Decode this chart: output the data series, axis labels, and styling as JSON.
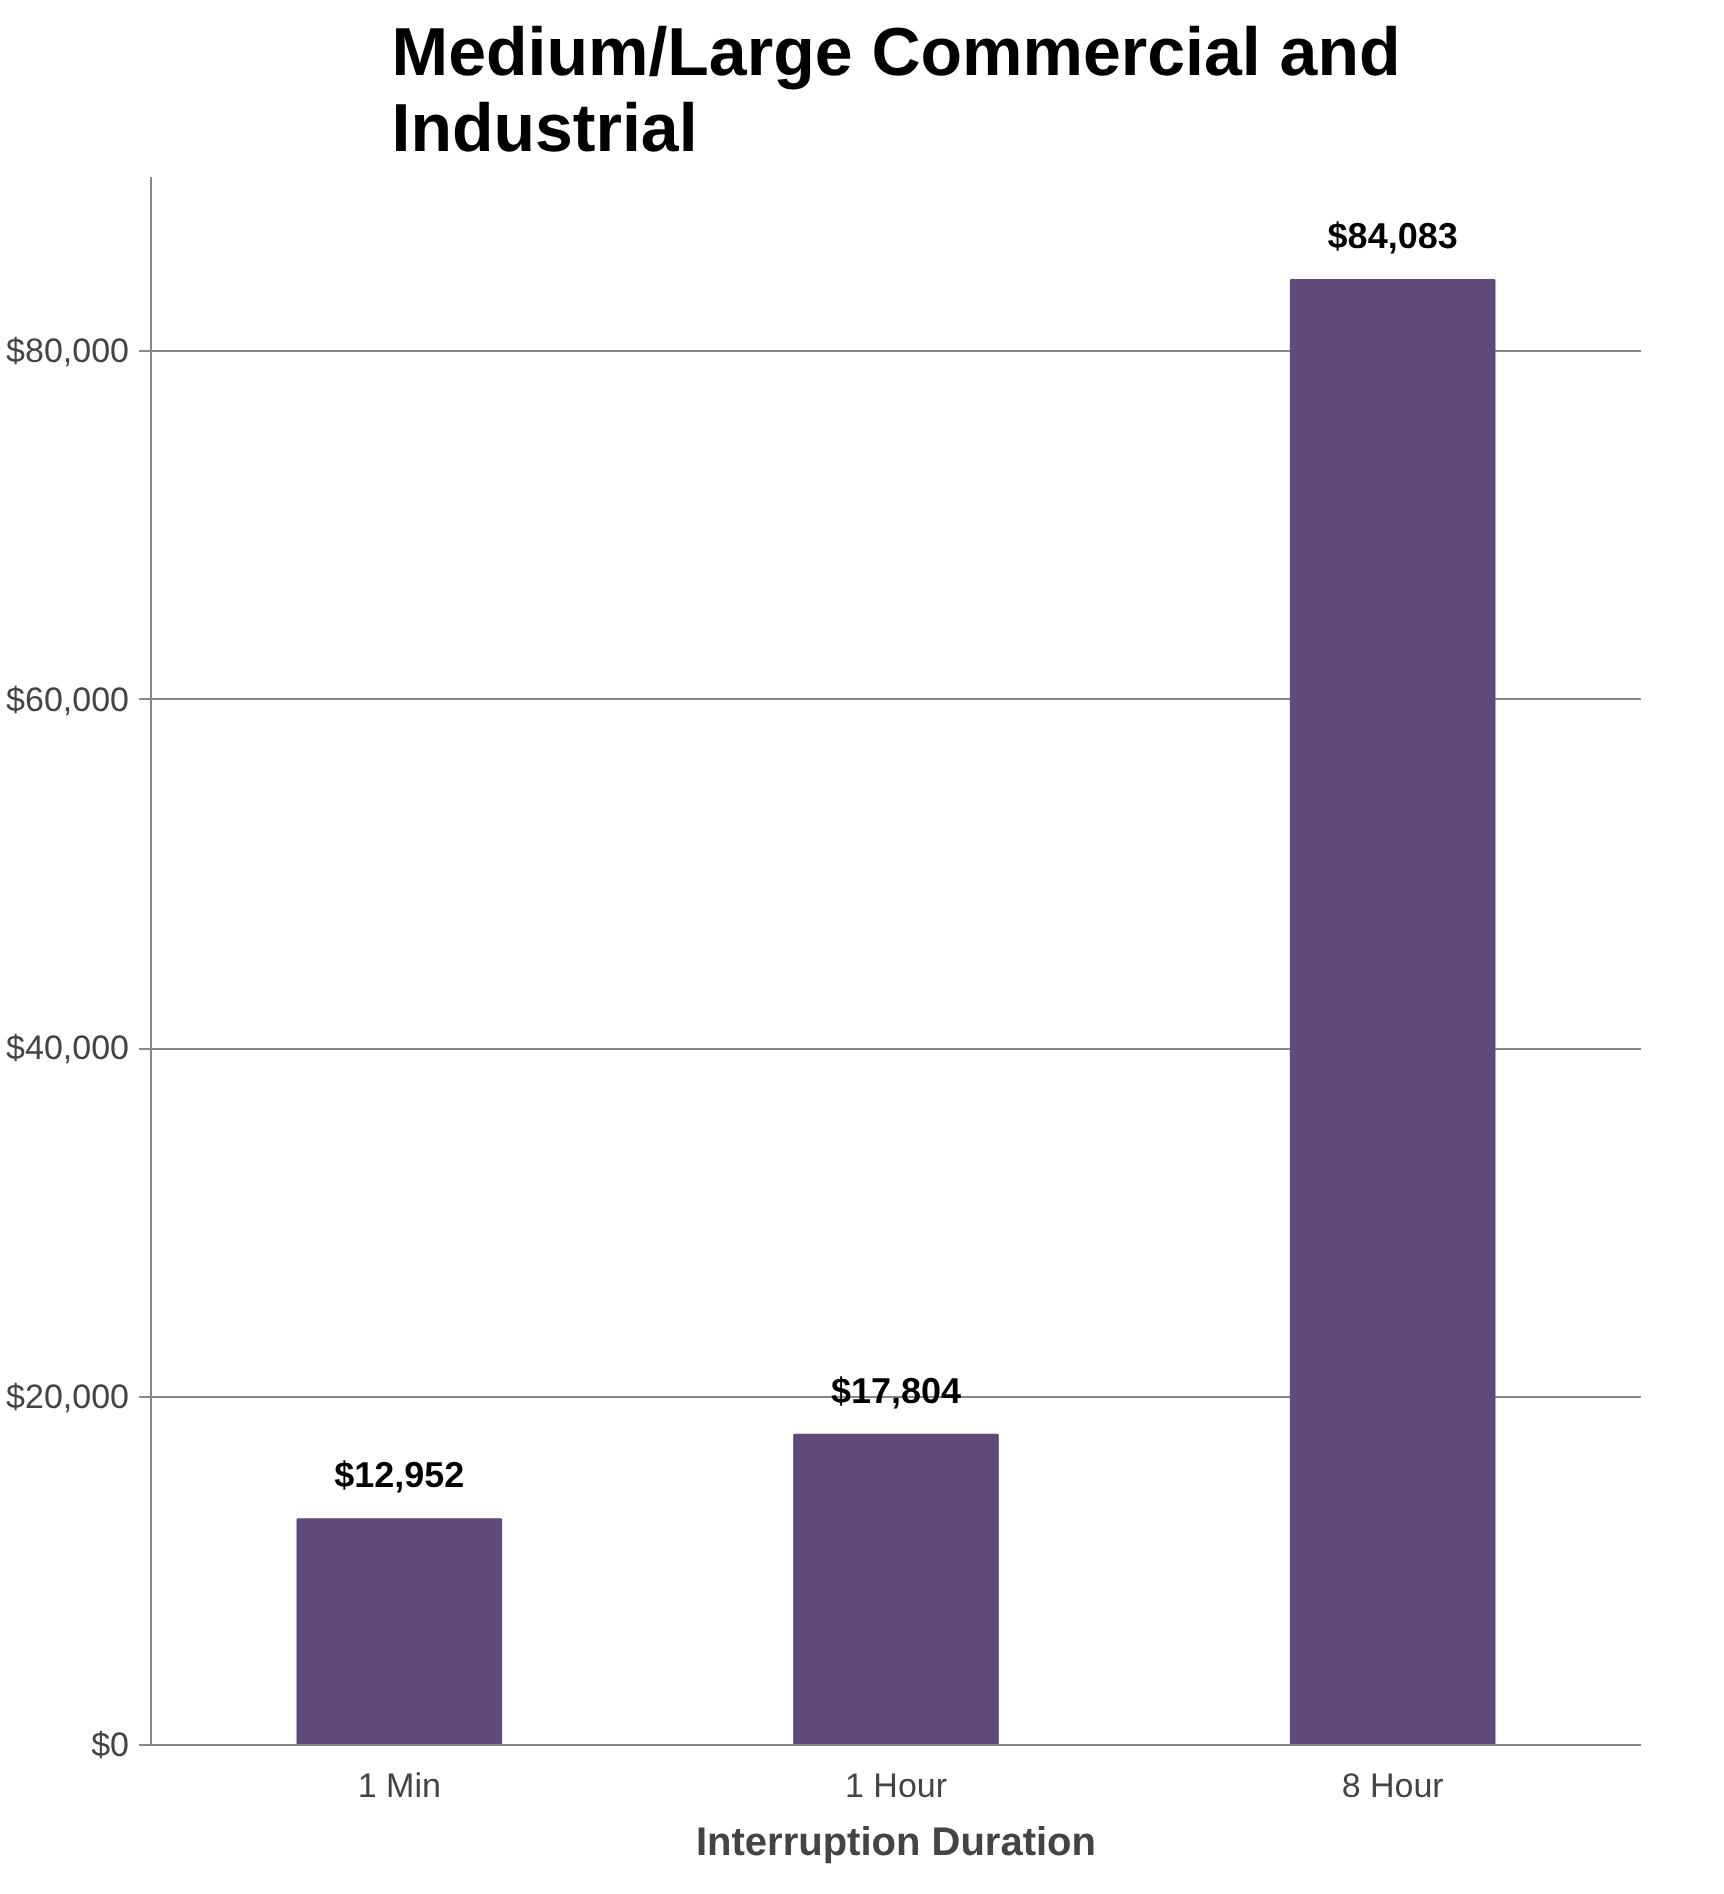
{
  "chart_data": {
    "type": "bar",
    "title": "Medium/Large Commercial and Industrial",
    "xlabel": "Interruption Duration",
    "categories": [
      "1 Min",
      "1 Hour",
      "8 Hour"
    ],
    "values": [
      12952,
      17804,
      84083
    ],
    "value_labels": [
      "$12,952",
      "$17,804",
      "$84,083"
    ],
    "color": "#604a7b",
    "ylim": [
      0,
      90000
    ],
    "yticks": [
      {
        "value": 0,
        "label": "$0"
      },
      {
        "value": 20000,
        "label": "$20,000"
      },
      {
        "value": 40000,
        "label": "$40,000"
      },
      {
        "value": 60000,
        "label": "$60,000"
      },
      {
        "value": 80000,
        "label": "$80,000"
      }
    ],
    "grid": "y"
  }
}
